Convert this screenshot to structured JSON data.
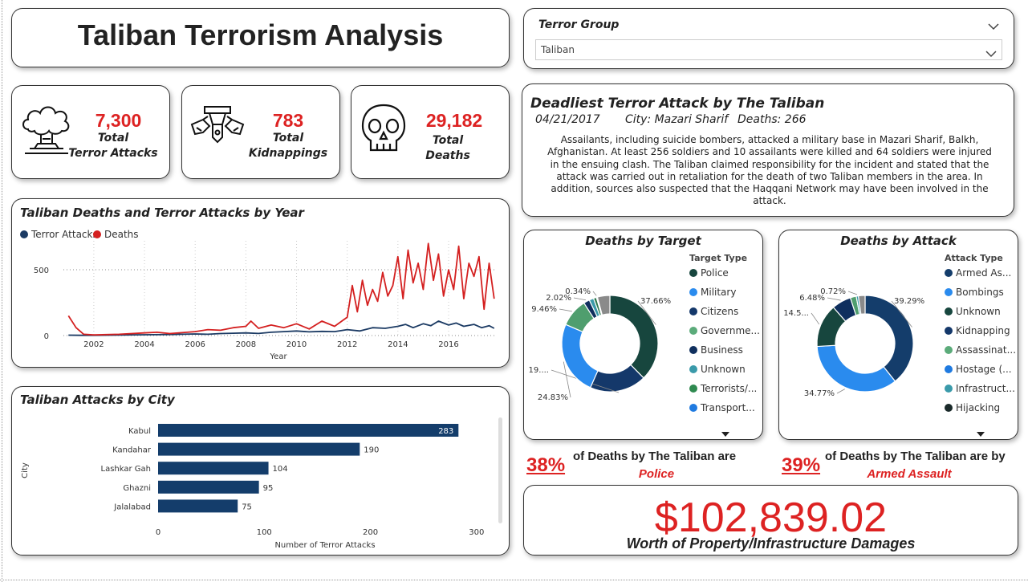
{
  "title": "Taliban Terrorism Analysis",
  "filter": {
    "label": "Terror Group",
    "value": "Taliban"
  },
  "kpis": [
    {
      "value": "7,300",
      "label_line1": "Total",
      "label_line2": "Terror Attacks",
      "icon": "explosion-icon"
    },
    {
      "value": "783",
      "label_line1": "Total",
      "label_line2": "Kidnappings",
      "icon": "kidnapping-icon"
    },
    {
      "value": "29,182",
      "label_line1": "Total",
      "label_line2": "Deaths",
      "icon": "skull-icon"
    }
  ],
  "deadliest": {
    "title": "Deadliest Terror Attack by The Taliban",
    "date": "04/21/2017",
    "city": "City: Mazari Sharif",
    "deaths": "Deaths: 266",
    "description": "Assailants, including suicide bombers, attacked a military base in Mazari Sharif, Balkh, Afghanistan. At least 256 soldiers and 10 assailants were killed and 64 soldiers were injured in the ensuing clash. The Taliban claimed responsibility for the incident and stated that the attack was carried out in retaliation for the death of two Taliban members in the area. In addition, sources also suspected that the Haqqani Network may have been involved in the attack."
  },
  "colors": {
    "accent": "#d22222",
    "navy": "#143d6b",
    "deaths_line": "#d42020",
    "attacks_line": "#1b3a63"
  },
  "chart_data": [
    {
      "type": "line",
      "title": "Taliban Deaths and Terror Attacks by Year",
      "xlabel": "Year",
      "ylabel": "",
      "xlim": [
        2000.8,
        2017.9
      ],
      "ylim": [
        0,
        720
      ],
      "xticks": [
        "2002",
        "2004",
        "2006",
        "2008",
        "2010",
        "2012",
        "2014",
        "2016"
      ],
      "yticks": [
        "0",
        "500"
      ],
      "legend_position": "top-left",
      "series": [
        {
          "name": "Terror Attacks",
          "color": "#1b3a63",
          "x": [
            2001.0,
            2001.5,
            2002.0,
            2003.0,
            2004.0,
            2005.0,
            2006.0,
            2006.5,
            2007.0,
            2007.5,
            2008.0,
            2008.5,
            2009.0,
            2009.5,
            2010.0,
            2010.5,
            2011.0,
            2011.5,
            2012.0,
            2012.5,
            2013.0,
            2013.5,
            2014.0,
            2014.3,
            2014.6,
            2015.0,
            2015.3,
            2015.6,
            2016.0,
            2016.3,
            2016.6,
            2017.0,
            2017.3,
            2017.6,
            2017.8
          ],
          "y": [
            3,
            2,
            2,
            4,
            6,
            8,
            12,
            10,
            15,
            18,
            20,
            16,
            25,
            30,
            35,
            28,
            32,
            30,
            45,
            35,
            60,
            55,
            70,
            85,
            60,
            90,
            75,
            110,
            80,
            95,
            70,
            85,
            60,
            75,
            55
          ]
        },
        {
          "name": "Deaths",
          "color": "#d42020",
          "x": [
            2001.0,
            2001.3,
            2001.6,
            2002.0,
            2003.0,
            2004.0,
            2004.5,
            2005.0,
            2006.0,
            2006.5,
            2007.0,
            2007.5,
            2008.0,
            2008.2,
            2008.5,
            2009.0,
            2009.5,
            2010.0,
            2010.5,
            2011.0,
            2011.5,
            2012.0,
            2012.2,
            2012.4,
            2012.6,
            2012.8,
            2013.0,
            2013.2,
            2013.4,
            2013.6,
            2013.8,
            2014.0,
            2014.2,
            2014.4,
            2014.6,
            2014.8,
            2015.0,
            2015.2,
            2015.4,
            2015.6,
            2015.8,
            2016.0,
            2016.2,
            2016.4,
            2016.6,
            2016.8,
            2017.0,
            2017.2,
            2017.4,
            2017.6,
            2017.8
          ],
          "y": [
            150,
            60,
            10,
            5,
            10,
            20,
            25,
            15,
            30,
            45,
            40,
            60,
            70,
            110,
            55,
            80,
            60,
            90,
            50,
            110,
            70,
            140,
            380,
            180,
            420,
            230,
            350,
            260,
            480,
            300,
            380,
            600,
            280,
            650,
            400,
            550,
            350,
            700,
            420,
            620,
            300,
            500,
            350,
            680,
            280,
            550,
            450,
            600,
            200,
            550,
            280
          ]
        }
      ]
    },
    {
      "type": "bar",
      "orientation": "horizontal",
      "title": "Taliban Attacks by City",
      "xlabel": "Number of Terror Attacks",
      "ylabel": "City",
      "categories": [
        "Kabul",
        "Kandahar",
        "Lashkar Gah",
        "Ghazni",
        "Jalalabad"
      ],
      "values": [
        283,
        190,
        104,
        95,
        75
      ],
      "xlim": [
        0,
        310
      ],
      "xticks": [
        "0",
        "100",
        "200",
        "300"
      ],
      "color": "#143d6b"
    },
    {
      "type": "pie",
      "donut": true,
      "title": "Deaths by Target",
      "legend_title": "Target Type",
      "legend": [
        "Police",
        "Military",
        "Citizens",
        "Governme...",
        "Business",
        "Unknown",
        "Terrorists/...",
        "Transport..."
      ],
      "values": [
        37.66,
        19.0,
        24.83,
        9.46,
        2.02,
        1.5,
        1.0,
        0.34,
        4.19
      ],
      "slice_colors": [
        "#17463e",
        "#14386a",
        "#2a8bee",
        "#4f9e6e",
        "#102f5e",
        "#3a9aaa",
        "#2f7a4e",
        "#1f7ae0",
        "#8a8a8a"
      ],
      "labels": [
        "37.66%",
        "19....",
        "24.83%",
        "9.46%",
        "2.02%",
        "",
        "",
        "0.34%",
        ""
      ],
      "legend_colors": [
        "#17463e",
        "#2a8bee",
        "#14386a",
        "#5bab7a",
        "#0f2f5e",
        "#3a9aaa",
        "#2f8a50",
        "#1f7ae0"
      ]
    },
    {
      "type": "pie",
      "donut": true,
      "title": "Deaths by Attack",
      "legend_title": "Attack Type",
      "legend": [
        "Armed As...",
        "Bombings",
        "Unknown",
        "Kidnapping",
        "Assassinat...",
        "Hostage (...",
        "Infrastruct...",
        "Hijacking"
      ],
      "values": [
        39.29,
        34.77,
        14.5,
        6.48,
        2.0,
        0.72,
        2.24
      ],
      "slice_colors": [
        "#143d6b",
        "#2a8bee",
        "#17463e",
        "#0f2f5e",
        "#4f9e6e",
        "#3a9aaa",
        "#8a8a8a"
      ],
      "labels": [
        "39.29%",
        "34.77%",
        "14.5...",
        "6.48%",
        "",
        "0.72%",
        ""
      ],
      "legend_colors": [
        "#143d6b",
        "#2a8bee",
        "#17463e",
        "#14386a",
        "#5bab7a",
        "#1f7ae0",
        "#3a9aaa",
        "#1a2a2a"
      ]
    }
  ],
  "insights": [
    {
      "pct": "38%",
      "text": "of Deaths by The Taliban are",
      "sub": "Police"
    },
    {
      "pct": "39%",
      "text": "of Deaths by The Taliban are by",
      "sub": "Armed Assault"
    }
  ],
  "damages": {
    "value": "$102,839.02",
    "label": "Worth of Property/Infrastructure Damages"
  }
}
